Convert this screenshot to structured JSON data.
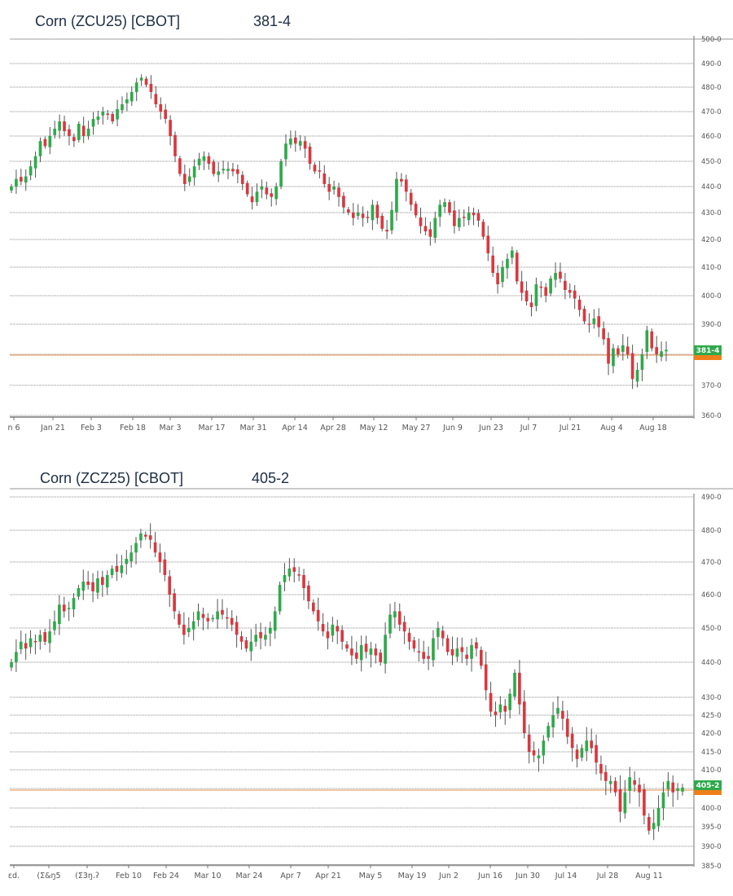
{
  "colors": {
    "up": "#2eaa4a",
    "down": "#d9383f",
    "wick": "#555555",
    "grid": "#b8b8b8",
    "axis": "#888888",
    "title": "#1d2d44",
    "badge_green": "#2eaa4a",
    "badge_orange": "#f07f1a",
    "last_line": "#e9a36b"
  },
  "charts": [
    {
      "title": "Corn (ZCU25) [CBOT]",
      "last_price": "381-4",
      "badge": "381-4"
    },
    {
      "title": "Corn (ZCZ25) [CBOT]",
      "last_price": "405-2",
      "badge": "405-2"
    }
  ],
  "chart_data": [
    {
      "type": "candlestick",
      "title": "Corn (ZCU25) [CBOT]",
      "last_price": 381.5,
      "last_price_label": "381-4",
      "ylim": [
        360,
        500
      ],
      "y_ticks": [
        "500-0",
        "490-0",
        "480-0",
        "470-0",
        "460-0",
        "450-0",
        "440-0",
        "430-0",
        "420-0",
        "410-0",
        "400-0",
        "390-0",
        "380-0",
        "370-0",
        "360-0"
      ],
      "y_tick_values": [
        500,
        490,
        480,
        470,
        460,
        450,
        440,
        430,
        420,
        410,
        400,
        390,
        380,
        370,
        360
      ],
      "x_ticks": [
        "n 6",
        "Jan 21",
        "Feb 3",
        "Feb 18",
        "Mar 3",
        "Mar 17",
        "Mar 31",
        "Apr 14",
        "Apr 28",
        "May 12",
        "May 27",
        "Jun 9",
        "Jun 23",
        "Jul 7",
        "Jul 21",
        "Aug 4",
        "Aug 18"
      ],
      "grid": true,
      "legend": null,
      "approx_closes": [
        440,
        443,
        442,
        444,
        448,
        452,
        458,
        456,
        460,
        463,
        466,
        462,
        460,
        458,
        465,
        460,
        463,
        467,
        468,
        470,
        469,
        466,
        471,
        473,
        475,
        478,
        482,
        484,
        481,
        478,
        473,
        470,
        467,
        460,
        452,
        445,
        441,
        444,
        448,
        451,
        452,
        449,
        445,
        446,
        447,
        447,
        446,
        445,
        441,
        437,
        434,
        438,
        440,
        437,
        436,
        440,
        450,
        457,
        459,
        457,
        458,
        455,
        449,
        446,
        446,
        441,
        438,
        440,
        436,
        432,
        430,
        428,
        430,
        428,
        428,
        433,
        428,
        424,
        423,
        431,
        443,
        442,
        438,
        433,
        429,
        425,
        423,
        421,
        428,
        433,
        434,
        430,
        425,
        428,
        428,
        430,
        429,
        427,
        421,
        415,
        408,
        404,
        410,
        413,
        416,
        405,
        401,
        398,
        396,
        404,
        403,
        400,
        406,
        408,
        406,
        402,
        401,
        399,
        395,
        391,
        390,
        392,
        389,
        385,
        377,
        382,
        380,
        383,
        380,
        372,
        375,
        380,
        388,
        382,
        380,
        381,
        381.5
      ]
    },
    {
      "type": "candlestick",
      "title": "Corn (ZCZ25) [CBOT]",
      "last_price": 405.25,
      "last_price_label": "405-2",
      "ylim": [
        385,
        490
      ],
      "y_ticks": [
        "490-0",
        "480-0",
        "470-0",
        "460-0",
        "450-0",
        "440-0",
        "430-0",
        "425-0",
        "420-0",
        "415-0",
        "410-0",
        "405-0",
        "400-0",
        "395-0",
        "390-0",
        "385-0"
      ],
      "y_tick_values": [
        490,
        480,
        470,
        460,
        450,
        440,
        430,
        425,
        420,
        415,
        410,
        405,
        400,
        395,
        390,
        385
      ],
      "x_ticks": [
        "ɛd.",
        "(Σ&ŋ5",
        "(Σ3ŋ.ʔ",
        "Feb 10",
        "Feb 24",
        "Mar 10",
        "Mar 24",
        "Apr 7",
        "Apr 21",
        "May 5",
        "May 19",
        "Jun 2",
        "Jun 16",
        "Jun 30",
        "Jul 14",
        "Jul 28",
        "Aug 11"
      ],
      "grid": true,
      "legend": null,
      "approx_closes": [
        440,
        443,
        446,
        444,
        447,
        446,
        448,
        446,
        449,
        452,
        457,
        455,
        456,
        459,
        462,
        464,
        463,
        461,
        465,
        463,
        466,
        468,
        467,
        469,
        471,
        473,
        476,
        479,
        478,
        477,
        473,
        470,
        466,
        460,
        455,
        451,
        448,
        450,
        452,
        455,
        453,
        452,
        453,
        455,
        454,
        453,
        451,
        448,
        446,
        444,
        446,
        448,
        447,
        448,
        450,
        455,
        463,
        466,
        468,
        467,
        466,
        462,
        458,
        455,
        452,
        449,
        447,
        451,
        449,
        446,
        444,
        442,
        441,
        445,
        443,
        444,
        442,
        440,
        448,
        454,
        455,
        451,
        449,
        446,
        444,
        443,
        441,
        441,
        447,
        450,
        447,
        443,
        442,
        444,
        443,
        441,
        445,
        444,
        439,
        432,
        426,
        425,
        428,
        426,
        431,
        437,
        428,
        420,
        415,
        414,
        414,
        418,
        422,
        425,
        427,
        424,
        419,
        416,
        413,
        416,
        418,
        416,
        412,
        409,
        407,
        407,
        404,
        399,
        404,
        408,
        406,
        404,
        398,
        394,
        396,
        400,
        404,
        407,
        404,
        405,
        405.25
      ]
    }
  ]
}
